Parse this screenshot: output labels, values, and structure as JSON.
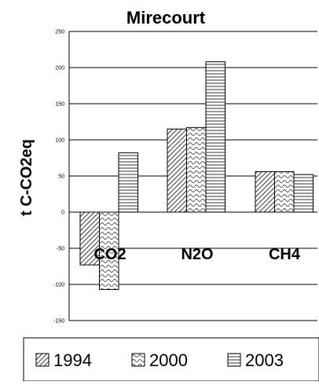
{
  "chart_data": {
    "type": "bar",
    "title": "Mirecourt",
    "xlabel": "",
    "ylabel": "t C-CO2eq",
    "categories": [
      "CO2",
      "N2O",
      "CH4"
    ],
    "series": [
      {
        "name": "1994",
        "values": [
          -73,
          115,
          56
        ],
        "pattern": "diag"
      },
      {
        "name": "2000",
        "values": [
          -107,
          117,
          56
        ],
        "pattern": "wave"
      },
      {
        "name": "2003",
        "values": [
          82,
          208,
          52
        ],
        "pattern": "horiz"
      }
    ],
    "ylim": [
      -150,
      250
    ],
    "yticks": [
      "250",
      "200",
      "150",
      "100",
      "50",
      "0",
      "-50",
      "-100",
      "-150"
    ],
    "grid": true,
    "legend": "bottom",
    "colors": {
      "bar_stroke": "#000000",
      "pattern_ink": "#555555",
      "bar_fill": "#ffffff",
      "grid": "#000000"
    }
  }
}
